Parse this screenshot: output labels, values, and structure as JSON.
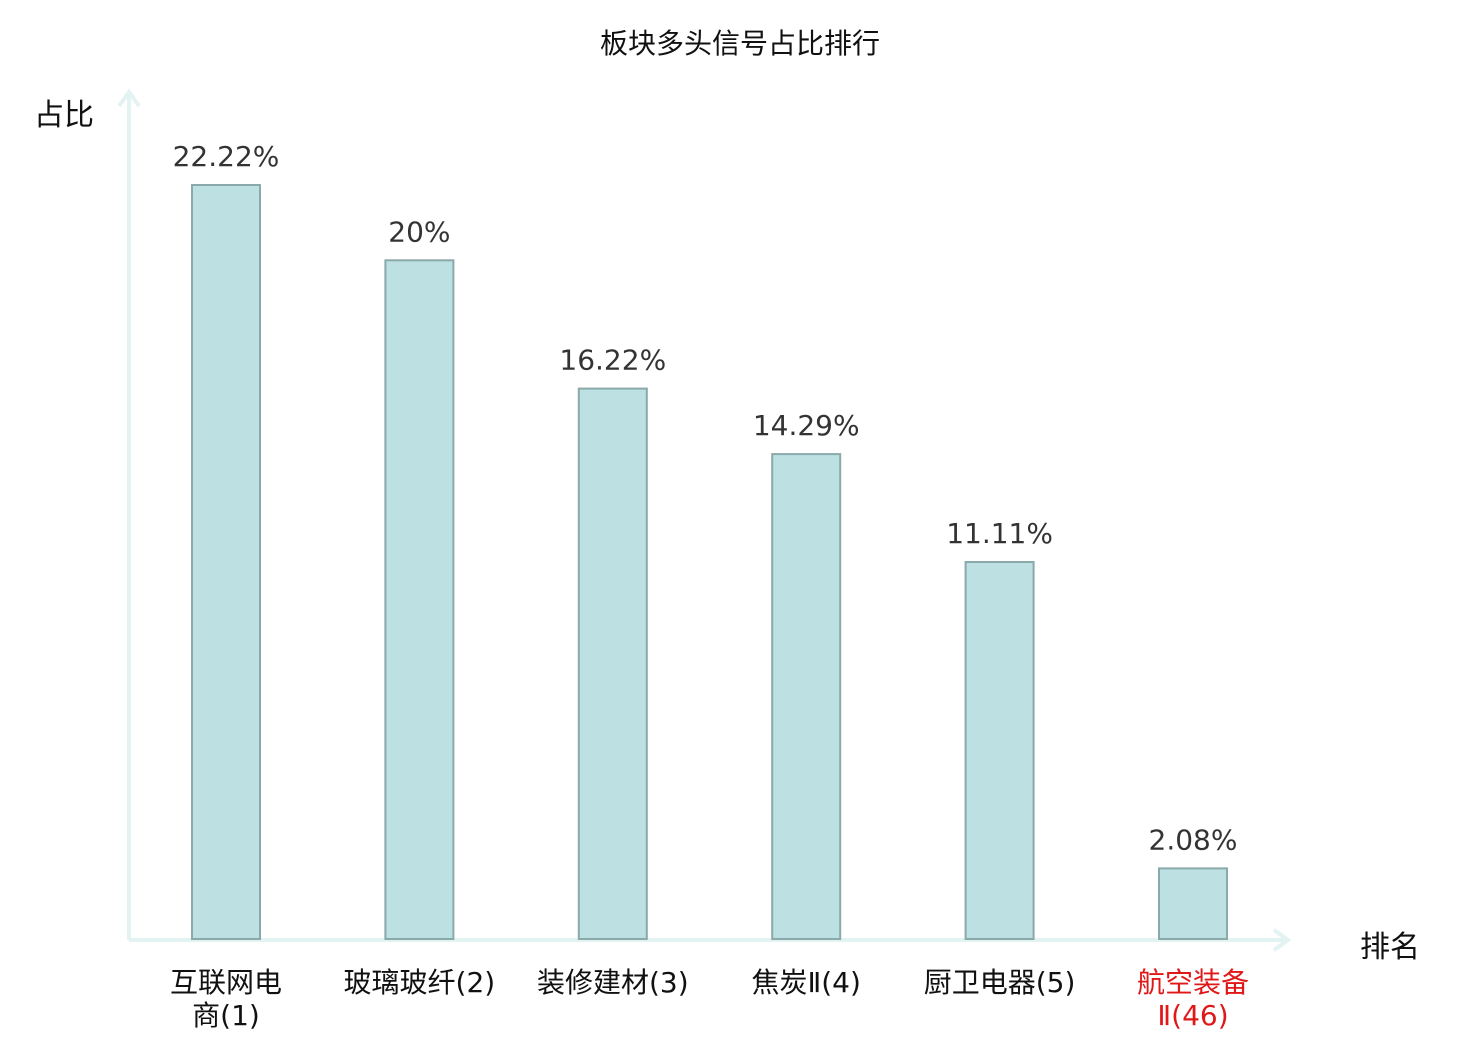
{
  "chart_data": {
    "type": "bar",
    "title": "板块多头信号占比排行",
    "ylabel": "占比",
    "xlabel": "排名",
    "categories": [
      "互联网电商(1)",
      "玻璃玻纤(2)",
      "装修建材(3)",
      "焦炭Ⅱ(4)",
      "厨卫电器(5)",
      "航空装备Ⅱ(46)"
    ],
    "values": [
      22.22,
      20,
      16.22,
      14.29,
      11.11,
      2.08
    ],
    "value_labels": [
      "22.22%",
      "20%",
      "16.22%",
      "14.29%",
      "11.11%",
      "2.08%"
    ],
    "highlight_index": 5,
    "ylim": [
      0,
      25
    ],
    "grid": false,
    "legend": "none"
  },
  "colors": {
    "bar_fill": "#bde0e2",
    "bar_stroke": "#8aa9aa",
    "axis": "#e2f3f1",
    "highlight_text": "#e01818"
  }
}
